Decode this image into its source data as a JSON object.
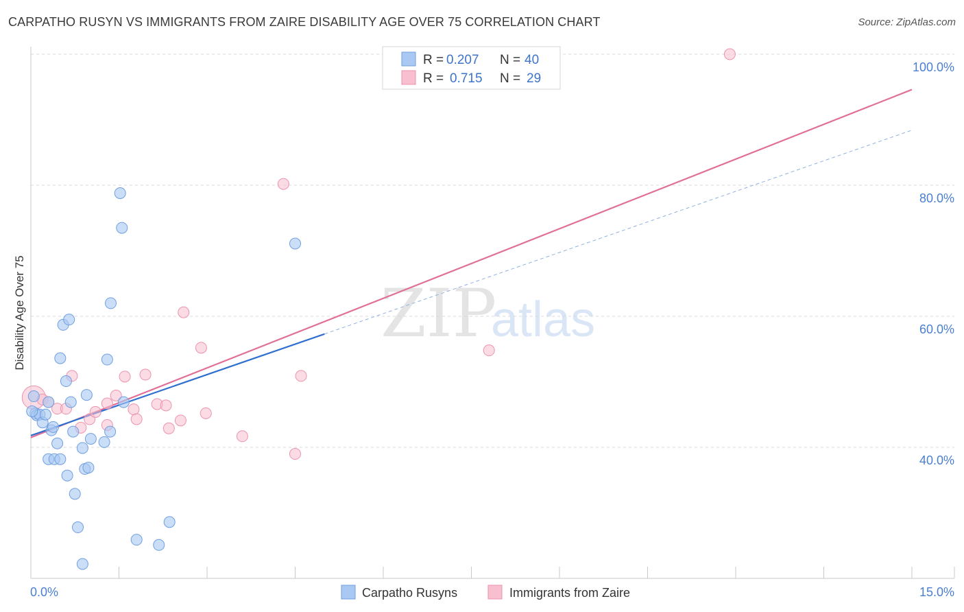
{
  "title": "CARPATHO RUSYN VS IMMIGRANTS FROM ZAIRE DISABILITY AGE OVER 75 CORRELATION CHART",
  "source": "Source: ZipAtlas.com",
  "watermark": {
    "zip": "ZIP",
    "atlas": "atlas"
  },
  "colors": {
    "blue_fill": "#a9c8f2",
    "blue_stroke": "#6f9fe0",
    "blue_line": "#2f6fd0",
    "pink_fill": "#f7bfd0",
    "pink_stroke": "#ec93ad",
    "pink_line": "#e07098",
    "grid": "#d9d9d9",
    "tick_text": "#4a7fd0"
  },
  "chart_data": {
    "type": "scatter",
    "title": "CARPATHO RUSYN VS IMMIGRANTS FROM ZAIRE DISABILITY AGE OVER 75 CORRELATION CHART",
    "xlabel": "",
    "ylabel": "Disability Age Over 75",
    "xlim": [
      0,
      15
    ],
    "ylim": [
      20,
      103
    ],
    "x_tick_labels": [
      "0.0%",
      "15.0%"
    ],
    "y_ticks": [
      40,
      60,
      80,
      100
    ],
    "y_tick_labels": [
      "40.0%",
      "60.0%",
      "80.0%",
      "100.0%"
    ],
    "legend_box": [
      {
        "r_label": "R =",
        "r_value": "0.207",
        "n_label": "N =",
        "n_value": "40"
      },
      {
        "r_label": "R =",
        "r_value": "0.715",
        "n_label": "N =",
        "n_value": "29"
      }
    ],
    "series": [
      {
        "name": "Carpatho Rusyns",
        "color": "blue",
        "points": [
          [
            0.05,
            47.8
          ],
          [
            0.08,
            45.2
          ],
          [
            0.1,
            44.9
          ],
          [
            0.15,
            45.0
          ],
          [
            0.2,
            43.8
          ],
          [
            0.25,
            45.0
          ],
          [
            0.3,
            38.2
          ],
          [
            0.3,
            46.9
          ],
          [
            0.35,
            42.6
          ],
          [
            0.38,
            43.1
          ],
          [
            0.4,
            38.2
          ],
          [
            0.45,
            40.6
          ],
          [
            0.5,
            38.2
          ],
          [
            0.5,
            53.6
          ],
          [
            0.55,
            58.7
          ],
          [
            0.6,
            50.1
          ],
          [
            0.62,
            35.7
          ],
          [
            0.65,
            59.5
          ],
          [
            0.68,
            46.9
          ],
          [
            0.72,
            42.4
          ],
          [
            0.75,
            32.9
          ],
          [
            0.8,
            27.8
          ],
          [
            0.88,
            39.9
          ],
          [
            0.88,
            22.2
          ],
          [
            0.92,
            36.7
          ],
          [
            0.95,
            48.0
          ],
          [
            0.98,
            36.9
          ],
          [
            1.02,
            41.3
          ],
          [
            1.25,
            40.8
          ],
          [
            1.3,
            53.4
          ],
          [
            1.35,
            42.4
          ],
          [
            1.36,
            62.0
          ],
          [
            1.52,
            78.8
          ],
          [
            1.55,
            73.5
          ],
          [
            1.58,
            46.9
          ],
          [
            1.8,
            25.9
          ],
          [
            2.18,
            25.1
          ],
          [
            2.36,
            28.6
          ],
          [
            4.5,
            71.1
          ],
          [
            0.02,
            45.5
          ]
        ]
      },
      {
        "name": "Immigrants from Zaire",
        "color": "pink",
        "points": [
          [
            0.05,
            47.6
          ],
          [
            0.2,
            47.3
          ],
          [
            0.3,
            46.9
          ],
          [
            0.45,
            45.9
          ],
          [
            0.6,
            45.9
          ],
          [
            0.7,
            50.9
          ],
          [
            0.85,
            43.0
          ],
          [
            1.0,
            44.3
          ],
          [
            1.1,
            45.4
          ],
          [
            1.3,
            43.4
          ],
          [
            1.3,
            46.7
          ],
          [
            1.45,
            47.9
          ],
          [
            1.6,
            50.8
          ],
          [
            1.75,
            45.8
          ],
          [
            1.8,
            44.3
          ],
          [
            1.95,
            51.1
          ],
          [
            2.15,
            46.6
          ],
          [
            2.3,
            46.4
          ],
          [
            2.35,
            42.9
          ],
          [
            2.55,
            44.1
          ],
          [
            2.6,
            60.6
          ],
          [
            2.9,
            55.2
          ],
          [
            2.98,
            45.2
          ],
          [
            3.6,
            41.7
          ],
          [
            4.3,
            80.2
          ],
          [
            4.5,
            39.0
          ],
          [
            4.6,
            50.9
          ],
          [
            7.8,
            54.8
          ],
          [
            11.9,
            100.0
          ]
        ]
      }
    ],
    "trendlines": [
      {
        "series": "Carpatho Rusyns",
        "x_start": 0,
        "y_start": 41.8,
        "x_solid_end": 5.0,
        "y_solid_end": 57.3,
        "x_dash_end": 15.0,
        "y_dash_end": 88.4,
        "style": "solid then dashed"
      },
      {
        "series": "Immigrants from Zaire",
        "x_start": 0,
        "y_start": 41.5,
        "x_end": 15.0,
        "y_end": 94.6,
        "style": "solid"
      }
    ],
    "legend": [
      "Carpatho Rusyns",
      "Immigrants from Zaire"
    ]
  }
}
